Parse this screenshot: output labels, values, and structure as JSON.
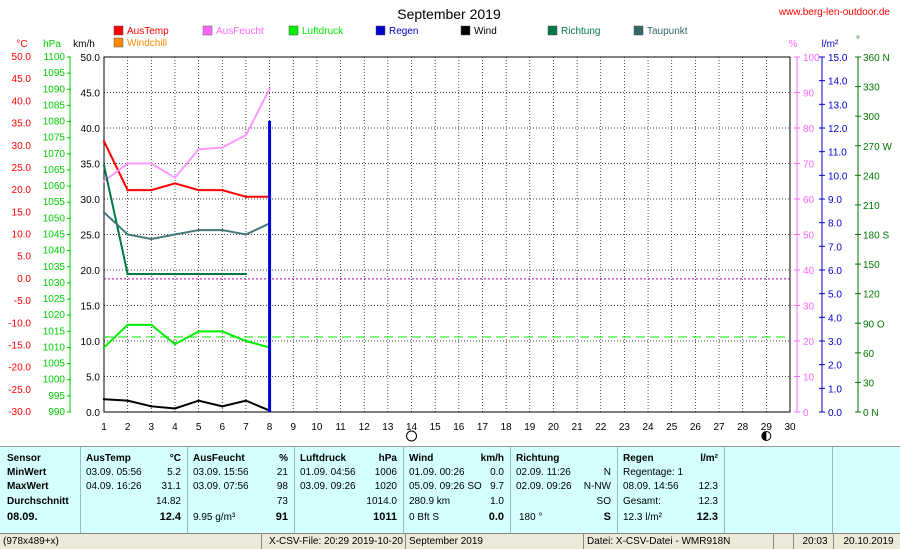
{
  "chart_data": {
    "type": "line",
    "title": "September 2019",
    "watermark": "www.berg-len-outdoor.de",
    "x": {
      "min": 1,
      "max": 30,
      "ticks": [
        1,
        2,
        3,
        4,
        5,
        6,
        7,
        8,
        9,
        10,
        11,
        12,
        13,
        14,
        15,
        16,
        17,
        18,
        19,
        20,
        21,
        22,
        23,
        24,
        25,
        26,
        27,
        28,
        29,
        30
      ]
    },
    "axes": {
      "temp": {
        "unit": "°C",
        "color": "#ff0000",
        "min": -30,
        "max": 50,
        "step": 5,
        "labels": [
          "50.0",
          "45.0",
          "40.0",
          "35.0",
          "30.0",
          "25.0",
          "20.0",
          "15.0",
          "10.0",
          "5.0",
          "0.0",
          "-5.0",
          "-10.0",
          "-15.0",
          "-20.0",
          "-25.0",
          "-30.0"
        ]
      },
      "pressure": {
        "unit": "hPa",
        "color": "#00cc00",
        "min": 990,
        "max": 1100,
        "step": 5,
        "labels": [
          "1100",
          "1095",
          "1090",
          "1085",
          "1080",
          "1075",
          "1070",
          "1065",
          "1060",
          "1055",
          "1050",
          "1045",
          "1040",
          "1035",
          "1030",
          "1025",
          "1020",
          "1015",
          "1010",
          "1005",
          "1000",
          "995",
          "990"
        ]
      },
      "wind": {
        "unit": "km/h",
        "color": "#000000",
        "min": 0,
        "max": 50,
        "step": 5,
        "labels": [
          "50.0",
          "45.0",
          "40.0",
          "35.0",
          "30.0",
          "25.0",
          "20.0",
          "15.0",
          "10.0",
          "5.0",
          "0.0"
        ]
      },
      "humidity": {
        "unit": "%",
        "color": "#ff66ff",
        "min": 0,
        "max": 100,
        "step": 10,
        "labels": [
          "100",
          "90",
          "80",
          "70",
          "60",
          "50",
          "40",
          "30",
          "20",
          "10",
          "0"
        ]
      },
      "rain": {
        "unit": "l/m²",
        "color": "#0000cc",
        "min": 0,
        "max": 15,
        "step": 1,
        "labels": [
          "15.0",
          "14.0",
          "13.0",
          "12.0",
          "11.0",
          "10.0",
          "9.0",
          "8.0",
          "7.0",
          "6.0",
          "5.0",
          "4.0",
          "3.0",
          "2.0",
          "1.0",
          "0.0"
        ]
      },
      "direction": {
        "unit": "°",
        "color": "#007700",
        "min": 0,
        "max": 360,
        "step": 30,
        "labels": [
          "360 N",
          "330",
          "300",
          "270 W",
          "240",
          "210",
          "180 S",
          "150",
          "120",
          "90 O",
          "60",
          "30",
          "0  N"
        ]
      }
    },
    "legend": [
      {
        "name": "AusTemp",
        "color": "#ff0000"
      },
      {
        "name": "AusFeucht",
        "color": "#ff66ff"
      },
      {
        "name": "Luftdruck",
        "color": "#00ee00"
      },
      {
        "name": "Regen",
        "color": "#0000cc"
      },
      {
        "name": "Wind",
        "color": "#000000"
      },
      {
        "name": "Richtung",
        "color": "#007744"
      },
      {
        "name": "Taupunkt",
        "color": "#336666"
      },
      {
        "name": "Windchill",
        "color": "#ff8800"
      }
    ],
    "series": [
      {
        "name": "AusTemp",
        "axis": "temp",
        "color": "#ff0000",
        "x": [
          1,
          2,
          3,
          4,
          5,
          6,
          7,
          8
        ],
        "values": [
          31.0,
          20.0,
          20.0,
          21.5,
          20.0,
          20.0,
          18.5,
          18.5
        ]
      },
      {
        "name": "AusFeucht",
        "axis": "humidity",
        "color": "#ff99ff",
        "x": [
          1,
          2,
          3,
          4,
          5,
          6,
          7,
          8
        ],
        "values": [
          65,
          70,
          70,
          66,
          74,
          74.5,
          78,
          91
        ]
      },
      {
        "name": "Luftdruck",
        "axis": "pressure",
        "color": "#00ee00",
        "x": [
          1,
          2,
          3,
          4,
          5,
          6,
          7,
          8
        ],
        "values": [
          1010,
          1017,
          1017,
          1011,
          1015,
          1015,
          1012,
          1010
        ]
      },
      {
        "name": "Wind",
        "axis": "wind",
        "color": "#000000",
        "x": [
          1,
          2,
          3,
          4,
          5,
          6,
          7,
          8
        ],
        "values": [
          1.8,
          1.6,
          0.8,
          0.5,
          1.6,
          0.8,
          1.6,
          0.2
        ]
      },
      {
        "name": "Richtung",
        "axis": "direction",
        "color": "#007744",
        "x": [
          1,
          2,
          3,
          4,
          5,
          6,
          7
        ],
        "values": [
          250,
          140,
          140,
          140,
          140,
          140,
          140
        ]
      },
      {
        "name": "Taupunkt",
        "axis": "temp",
        "color": "#447777",
        "x": [
          1,
          2,
          3,
          4,
          5,
          6,
          7,
          8
        ],
        "values": [
          15.0,
          10.0,
          9.0,
          10.0,
          11.0,
          11.0,
          10.0,
          12.5
        ]
      }
    ],
    "rain_bars": [
      {
        "x": 8,
        "value": 12.3
      }
    ],
    "reference_lines": [
      {
        "axis": "temp",
        "value": 0,
        "color": "#aa00aa",
        "style": "dotted"
      },
      {
        "axis": "pressure",
        "value": 1013.25,
        "color": "#00ee00",
        "style": "dashed"
      }
    ],
    "moon_markers": [
      {
        "x": 14,
        "phase": "full"
      },
      {
        "x": 29,
        "phase": "new"
      }
    ]
  },
  "table": {
    "sensor": {
      "header": "Sensor",
      "minwert": "MinWert",
      "maxwert": "MaxWert",
      "durchschnitt": "Durchschnitt",
      "date": "08.09."
    },
    "austemp": {
      "header": "AusTemp",
      "unit": "°C",
      "min_dt": "03.09.  05:56",
      "min_v": "5.2",
      "max_dt": "04.09.  16:26",
      "max_v": "31.1",
      "avg_v": "14.82",
      "cur_v": "12.4"
    },
    "ausfeucht": {
      "header": "AusFeucht",
      "unit": "%",
      "min_dt": "03.09.  15:56",
      "min_v": "21",
      "max_dt": "03.09.  07:56",
      "max_v": "98",
      "avg_v": "73",
      "cur_extra": "9.95 g/m³",
      "cur_v": "91"
    },
    "luftdruck": {
      "header": "Luftdruck",
      "unit": "hPa",
      "min_dt": "01.09.  04:56",
      "min_v": "1006",
      "max_dt": "03.09.  09:26",
      "max_v": "1020",
      "avg_v": "1014.0",
      "cur_v": "1011"
    },
    "wind": {
      "header": "Wind",
      "unit": "km/h",
      "min_dt": "01.09.  00:26",
      "min_v": "0.0",
      "max_dt": "05.09.  09:26  SO",
      "max_v": "9.7",
      "avg_dt": "280.9 km",
      "avg_v": "1.0",
      "cur_dt": "0 Bft  S",
      "cur_v": "0.0"
    },
    "richtung": {
      "header": "Richtung",
      "min_dt": "02.09.  11:26",
      "min_v": "N",
      "max_dt": "02.09.  09:26",
      "max_v": "N-NW",
      "avg_v": "SO",
      "cur_dt": "180 °",
      "cur_v": "S"
    },
    "regen": {
      "header": "Regen",
      "unit": "l/m²",
      "row1": "Regentage: 1",
      "row2_dt": "08.09.  14:56",
      "row2_v": "12.3",
      "row3_dt": "Gesamt:",
      "row3_v": "12.3",
      "row4_dt": "12.3 l/m²",
      "row4_v": "12.3"
    }
  },
  "status": {
    "size": "(978x489+x)",
    "file": "X-CSV-File:  20:29  2019-10-20",
    "month": "September 2019",
    "datei": "Datei: X-CSV-Datei - WMR918N",
    "time": "20:03",
    "date": "20.10.2019"
  }
}
